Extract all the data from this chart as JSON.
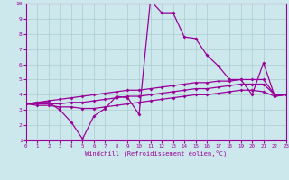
{
  "xlabel": "Windchill (Refroidissement éolien,°C)",
  "bg_color": "#cce8ec",
  "grid_color": "#aacccc",
  "line_color": "#990099",
  "xmin": 0,
  "xmax": 23,
  "ymin": 1,
  "ymax": 10,
  "line1_x": [
    0,
    1,
    2,
    3,
    4,
    5,
    6,
    7,
    8,
    9,
    10,
    11,
    12,
    13,
    14,
    15,
    16,
    17,
    18,
    19,
    20,
    21,
    22,
    23
  ],
  "line1_y": [
    3.4,
    3.5,
    3.5,
    3.0,
    2.2,
    1.1,
    2.6,
    3.1,
    3.9,
    3.8,
    2.7,
    10.2,
    9.4,
    9.4,
    7.8,
    7.7,
    6.6,
    5.9,
    5.0,
    5.0,
    4.0,
    6.1,
    3.9,
    4.0
  ],
  "line2_x": [
    0,
    1,
    2,
    3,
    4,
    5,
    6,
    7,
    8,
    9,
    10,
    11,
    12,
    13,
    14,
    15,
    16,
    17,
    18,
    19,
    20,
    21,
    22,
    23
  ],
  "line2_y": [
    3.4,
    3.5,
    3.6,
    3.7,
    3.8,
    3.9,
    4.0,
    4.1,
    4.2,
    4.3,
    4.3,
    4.4,
    4.5,
    4.6,
    4.7,
    4.8,
    4.8,
    4.9,
    4.9,
    5.0,
    5.0,
    5.0,
    4.0,
    4.0
  ],
  "line3_x": [
    0,
    1,
    2,
    3,
    4,
    5,
    6,
    7,
    8,
    9,
    10,
    11,
    12,
    13,
    14,
    15,
    16,
    17,
    18,
    19,
    20,
    21,
    22,
    23
  ],
  "line3_y": [
    3.4,
    3.4,
    3.4,
    3.4,
    3.5,
    3.5,
    3.6,
    3.7,
    3.8,
    3.9,
    3.9,
    4.0,
    4.1,
    4.2,
    4.3,
    4.4,
    4.4,
    4.5,
    4.6,
    4.7,
    4.7,
    4.7,
    4.0,
    4.0
  ],
  "line4_x": [
    0,
    1,
    2,
    3,
    4,
    5,
    6,
    7,
    8,
    9,
    10,
    11,
    12,
    13,
    14,
    15,
    16,
    17,
    18,
    19,
    20,
    21,
    22,
    23
  ],
  "line4_y": [
    3.4,
    3.3,
    3.3,
    3.2,
    3.2,
    3.1,
    3.1,
    3.2,
    3.3,
    3.4,
    3.5,
    3.6,
    3.7,
    3.8,
    3.9,
    4.0,
    4.0,
    4.1,
    4.2,
    4.3,
    4.3,
    4.2,
    3.9,
    4.0
  ],
  "xticks": [
    0,
    1,
    2,
    3,
    4,
    5,
    6,
    7,
    8,
    9,
    10,
    11,
    12,
    13,
    14,
    15,
    16,
    17,
    18,
    19,
    20,
    21,
    22,
    23
  ],
  "yticks": [
    1,
    2,
    3,
    4,
    5,
    6,
    7,
    8,
    9,
    10
  ]
}
